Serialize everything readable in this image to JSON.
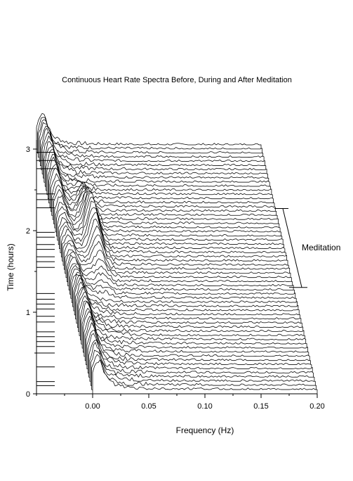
{
  "chart_data": {
    "type": "line",
    "title": "Continuous Heart Rate Spectra Before, During and After Meditation",
    "xlabel": "Frequency (Hz)",
    "ylabel": "Time (hours)",
    "xlim": [
      -0.05,
      0.2
    ],
    "ylim": [
      0,
      3
    ],
    "x_ticks": [
      0.0,
      0.05,
      0.1,
      0.15,
      0.2
    ],
    "x_tick_labels": [
      "0.00",
      "0.05",
      "0.10",
      "0.15",
      "0.20"
    ],
    "y_ticks": [
      0,
      1,
      2,
      3
    ],
    "y_tick_labels": [
      "0",
      "1",
      "2",
      "3"
    ],
    "grid": false,
    "legend": "none",
    "waterfall": {
      "trace_count": 60,
      "time_start_hours": 0.0,
      "time_end_hours": 3.0,
      "frequency_start_hz": 0.0,
      "frequency_end_hz": 0.2,
      "low_frequency_peak_hz": 0.005,
      "meditation_peak_hz": 0.03
    },
    "annotations": [
      {
        "text": "Meditation",
        "time_start_hours": 1.33,
        "time_end_hours": 2.28
      }
    ],
    "time_markers_hours": [
      0.1,
      0.15,
      0.33,
      0.5,
      0.58,
      0.64,
      0.7,
      0.76,
      0.88,
      0.95,
      1.04,
      1.1,
      1.16,
      1.23,
      1.55,
      1.62,
      1.68,
      1.77,
      1.83,
      1.92,
      1.98,
      2.28,
      2.38,
      2.45,
      2.76,
      2.86,
      2.96
    ]
  }
}
